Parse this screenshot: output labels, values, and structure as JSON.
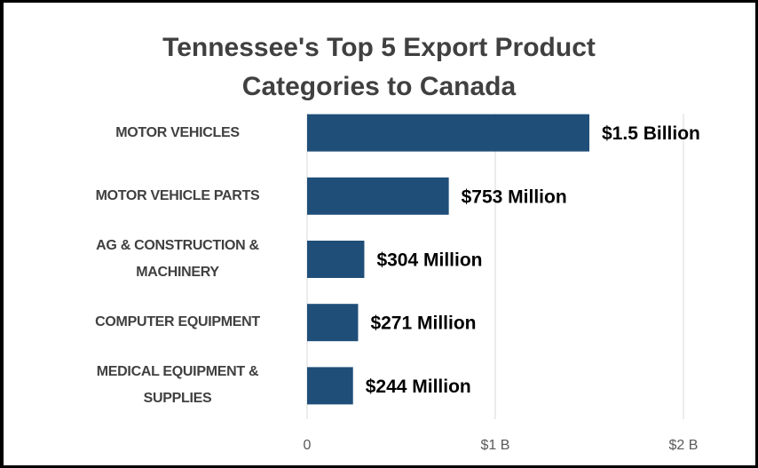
{
  "chart_data": {
    "type": "bar",
    "orientation": "horizontal",
    "title": "Tennessee's Top 5 Export Product\nCategories to Canada",
    "categories": [
      "MOTOR VEHICLES",
      "MOTOR VEHICLE PARTS",
      "AG & CONSTRUCTION &\nMACHINERY",
      "COMPUTER EQUIPMENT",
      "MEDICAL EQUIPMENT &\nSUPPLIES"
    ],
    "values": [
      1500000000,
      753000000,
      304000000,
      271000000,
      244000000
    ],
    "value_labels": [
      "$1.5 Billion",
      "$753 Million",
      "$304 Million",
      "$271 Million",
      "$244 Million"
    ],
    "color": "#1f4e79",
    "xlim": [
      0,
      2000000000
    ],
    "xticks": [
      0,
      {
        "value": 1000000000,
        "label": "$1 B"
      },
      {
        "value": 2000000000,
        "label": "$2 B"
      }
    ],
    "grid": true
  }
}
